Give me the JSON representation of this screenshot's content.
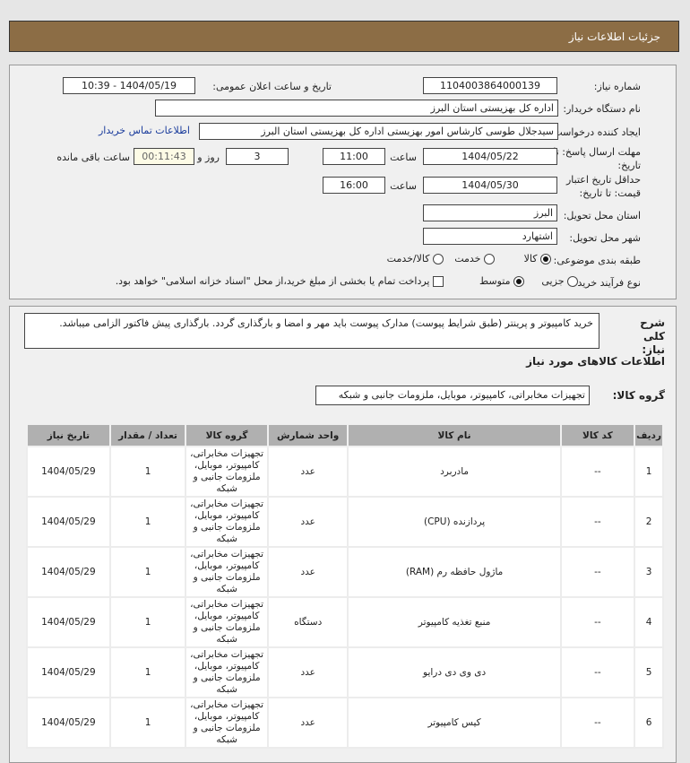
{
  "header": {
    "title": "جزئیات اطلاعات نیاز"
  },
  "form": {
    "need_number_label": "شماره نیاز:",
    "need_number": "1104003864000139",
    "announce_label": "تاریخ و ساعت اعلان عمومی:",
    "announce_value": "1404/05/19 - 10:39",
    "buyer_label": "نام دستگاه خریدار:",
    "buyer": "اداره کل بهزیستی استان البرز",
    "creator_label": "ایجاد کننده درخواست:",
    "creator": "سیدجلال طوسی کارشاس امور بهزیستی اداره کل بهزیستی استان البرز",
    "contact_link": "اطلاعات تماس خریدار",
    "deadline_label": "مهلت ارسال پاسخ: تا تاریخ:",
    "deadline_date": "1404/05/22",
    "time_label": "ساعت",
    "deadline_time": "11:00",
    "days": "3",
    "days_label": "روز و",
    "remaining": "00:11:43",
    "remaining_label": "ساعت باقی مانده",
    "validity_label": "حداقل تاریخ اعتبار قیمت: تا تاریخ:",
    "validity_date": "1404/05/30",
    "validity_time": "16:00",
    "province_label": "استان محل تحویل:",
    "province": "البرز",
    "city_label": "شهر محل تحویل:",
    "city": "اشتهارد",
    "category_label": "طبقه بندی موضوعی:",
    "category_options": [
      "کالا",
      "خدمت",
      "کالا/خدمت"
    ],
    "category_selected": "کالا",
    "process_label": "نوع فرآیند خرید :",
    "process_options": [
      "جزیی",
      "متوسط"
    ],
    "process_selected": "متوسط",
    "payment_note": "پرداخت تمام یا بخشی از مبلغ خرید،از محل \"اسناد خزانه اسلامی\" خواهد بود."
  },
  "description": {
    "label": "شرح کلی نیاز:",
    "text": "خرید کامپیوتر و پرینتر (طبق شرایط پیوست) مدارک پیوست باید مهر و امضا و بارگذاری گردد. بارگذاری پیش فاکتور الزامی میباشد."
  },
  "goods": {
    "section_title": "اطلاعات کالاهای مورد نیاز",
    "group_label": "گروه کالا:",
    "group": "تجهیزات مخابراتی، کامپیوتر، موبایل، ملزومات جانبی و شبکه",
    "columns": [
      "ردیف",
      "کد کالا",
      "نام کالا",
      "واحد شمارش",
      "گروه کالا",
      "تعداد / مقدار",
      "تاریخ نیاز"
    ],
    "rows": [
      {
        "n": "1",
        "code": "--",
        "name": "مادربرد",
        "unit": "عدد",
        "group": "تجهیزات مخابراتی، کامپیوتر، موبایل، ملزومات جانبی و شبکه",
        "qty": "1",
        "date": "1404/05/29"
      },
      {
        "n": "2",
        "code": "--",
        "name": "پردازنده (CPU)",
        "unit": "عدد",
        "group": "تجهیزات مخابراتی، کامپیوتر، موبایل، ملزومات جانبی و شبکه",
        "qty": "1",
        "date": "1404/05/29"
      },
      {
        "n": "3",
        "code": "--",
        "name": "ماژول حافظه رم (RAM)",
        "unit": "عدد",
        "group": "تجهیزات مخابراتی، کامپیوتر، موبایل، ملزومات جانبی و شبکه",
        "qty": "1",
        "date": "1404/05/29"
      },
      {
        "n": "4",
        "code": "--",
        "name": "منبع تغذیه کامپیوتر",
        "unit": "دستگاه",
        "group": "تجهیزات مخابراتی، کامپیوتر، موبایل، ملزومات جانبی و شبکه",
        "qty": "1",
        "date": "1404/05/29"
      },
      {
        "n": "5",
        "code": "--",
        "name": "دی وی دی درایو",
        "unit": "عدد",
        "group": "تجهیزات مخابراتی، کامپیوتر، موبایل، ملزومات جانبی و شبکه",
        "qty": "1",
        "date": "1404/05/29"
      },
      {
        "n": "6",
        "code": "--",
        "name": "کیس کامپیوتر",
        "unit": "عدد",
        "group": "تجهیزات مخابراتی، کامپیوتر، موبایل، ملزومات جانبی و شبکه",
        "qty": "1",
        "date": "1404/05/29"
      }
    ]
  }
}
